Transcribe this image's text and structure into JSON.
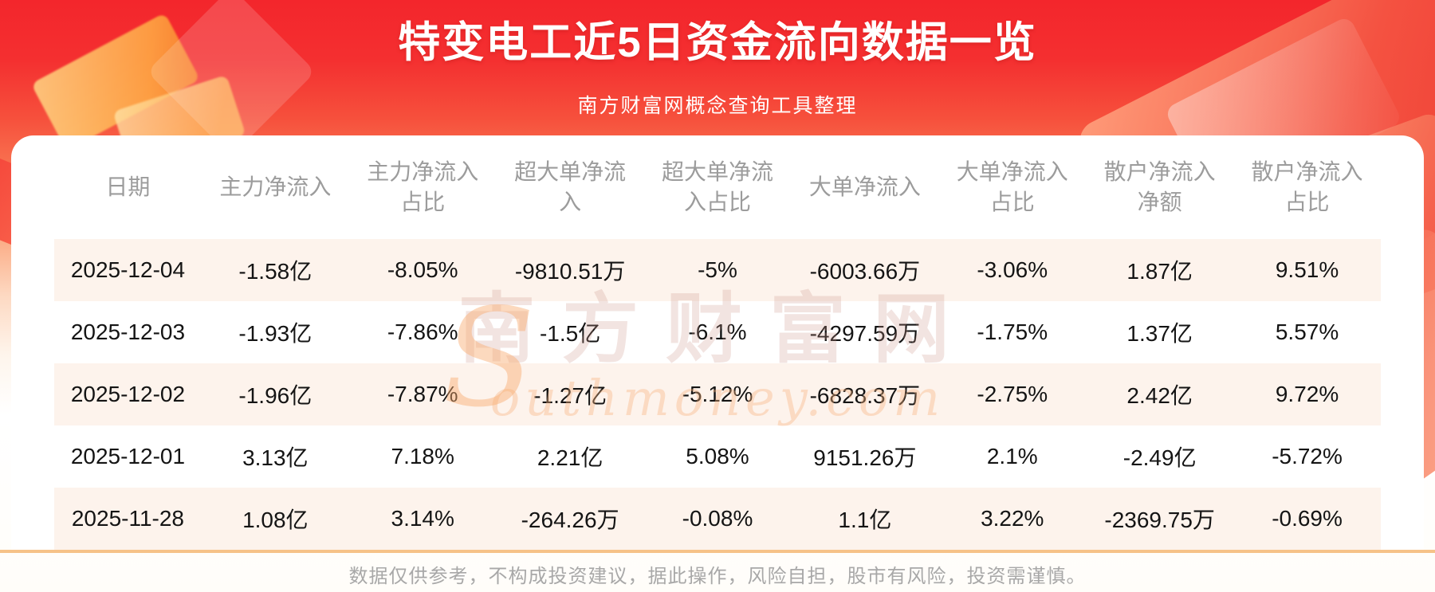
{
  "banner": {
    "title": "特变电工近5日资金流向数据一览",
    "subtitle": "南方财富网概念查询工具整理"
  },
  "table": {
    "headers": [
      "日期",
      "主力净流入",
      "主力净流入占比",
      "超大单净流入",
      "超大单净流入占比",
      "大单净流入",
      "大单净流入占比",
      "散户净流入净额",
      "散户净流入占比"
    ],
    "rows": [
      [
        "2025-12-04",
        "-1.58亿",
        "-8.05%",
        "-9810.51万",
        "-5%",
        "-6003.66万",
        "-3.06%",
        "1.87亿",
        "9.51%"
      ],
      [
        "2025-12-03",
        "-1.93亿",
        "-7.86%",
        "-1.5亿",
        "-6.1%",
        "-4297.59万",
        "-1.75%",
        "1.37亿",
        "5.57%"
      ],
      [
        "2025-12-02",
        "-1.96亿",
        "-7.87%",
        "-1.27亿",
        "-5.12%",
        "-6828.37万",
        "-2.75%",
        "2.42亿",
        "9.72%"
      ],
      [
        "2025-12-01",
        "3.13亿",
        "7.18%",
        "2.21亿",
        "5.08%",
        "9151.26万",
        "2.1%",
        "-2.49亿",
        "-5.72%"
      ],
      [
        "2025-11-28",
        "1.08亿",
        "3.14%",
        "-264.26万",
        "-0.08%",
        "1.1亿",
        "3.22%",
        "-2369.75万",
        "-0.69%"
      ]
    ]
  },
  "chart_data": {
    "type": "table",
    "title": "特变电工近5日资金流向数据一览",
    "subtitle": "南方财富网概念查询工具整理",
    "columns": [
      "日期",
      "主力净流入",
      "主力净流入占比",
      "超大单净流入",
      "超大单净流入占比",
      "大单净流入",
      "大单净流入占比",
      "散户净流入净额",
      "散户净流入占比"
    ],
    "rows": [
      [
        "2025-12-04",
        "-1.58亿",
        "-8.05%",
        "-9810.51万",
        "-5%",
        "-6003.66万",
        "-3.06%",
        "1.87亿",
        "9.51%"
      ],
      [
        "2025-12-03",
        "-1.93亿",
        "-7.86%",
        "-1.5亿",
        "-6.1%",
        "-4297.59万",
        "-1.75%",
        "1.37亿",
        "5.57%"
      ],
      [
        "2025-12-02",
        "-1.96亿",
        "-7.87%",
        "-1.27亿",
        "-5.12%",
        "-6828.37万",
        "-2.75%",
        "2.42亿",
        "9.72%"
      ],
      [
        "2025-12-01",
        "3.13亿",
        "7.18%",
        "2.21亿",
        "5.08%",
        "9151.26万",
        "2.1%",
        "-2.49亿",
        "-5.72%"
      ],
      [
        "2025-11-28",
        "1.08亿",
        "3.14%",
        "-264.26万",
        "-0.08%",
        "1.1亿",
        "3.22%",
        "-2369.75万",
        "-0.69%"
      ]
    ]
  },
  "watermark": {
    "swoosh": "S",
    "cn": "南方财富网",
    "en": "outhmoney.com"
  },
  "footer": {
    "disclaimer": "数据仅供参考，不构成投资建议，据此操作，风险自担，股市有风险，投资需谨慎。"
  },
  "colors": {
    "banner_red": "#f3262c",
    "row_stripe": "#fdf3ec",
    "divider_orange": "#f6c288",
    "header_text": "#9c9c9c",
    "body_text": "#141414",
    "footer_text": "#a8a8a8",
    "title_text": "#ffffff"
  }
}
